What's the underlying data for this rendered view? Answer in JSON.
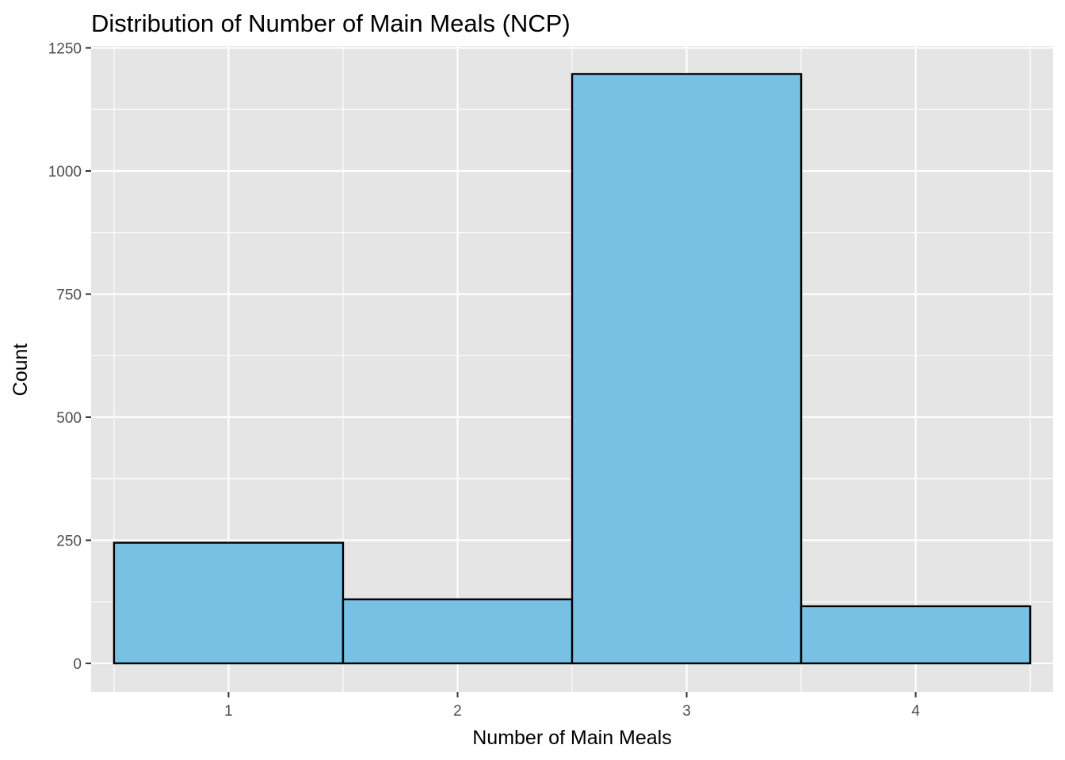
{
  "chart_data": {
    "type": "bar",
    "title": "Distribution of Number of Main Meals (NCP)",
    "xlabel": "Number of Main Meals",
    "ylabel": "Count",
    "categories": [
      "1",
      "2",
      "3",
      "4"
    ],
    "values": [
      245,
      130,
      1197,
      116
    ],
    "ylim": [
      -58,
      1254
    ],
    "yticks": [
      0,
      250,
      500,
      750,
      1000,
      1250
    ],
    "xticks": [
      "1",
      "2",
      "3",
      "4"
    ],
    "grid": true,
    "legend": "none",
    "colors": {
      "bar_fill": "#78c1e5",
      "bar_stroke": "#000000",
      "panel_background": "#e5e5e5",
      "grid": "#ffffff"
    }
  }
}
